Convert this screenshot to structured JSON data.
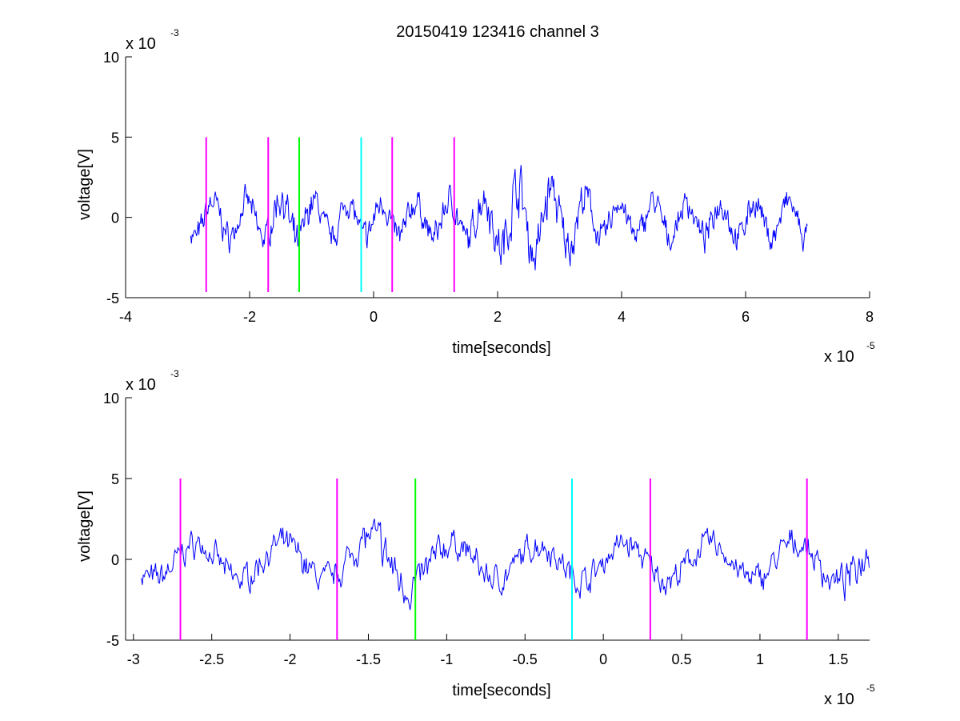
{
  "chart_data": [
    {
      "type": "line",
      "title": "20150419 123416 channel 3",
      "xlabel": "time[seconds]",
      "ylabel": "voltage[V]",
      "xlim": [
        -4,
        8
      ],
      "ylim": [
        -5,
        10
      ],
      "x_scale_label": "x 10",
      "x_scale_exp": "-5",
      "y_scale_label": "x 10",
      "y_scale_exp": "-3",
      "x_ticks": [
        -4,
        -2,
        0,
        2,
        4,
        6,
        8
      ],
      "x_tick_labels": [
        "-4",
        "-2",
        "0",
        "2",
        "4",
        "6",
        "8"
      ],
      "y_ticks": [
        -5,
        0,
        5,
        10
      ],
      "y_tick_labels": [
        "-5",
        "0",
        "5",
        "10"
      ],
      "signal": {
        "x_start": -2.95,
        "x_end": 7.0,
        "color": "#0000ff",
        "seed": 7
      },
      "markers": [
        {
          "x": -2.7,
          "color": "#ff00ff",
          "y_top": 5,
          "y_bottom": -5
        },
        {
          "x": -1.7,
          "color": "#ff00ff",
          "y_top": 5,
          "y_bottom": -5
        },
        {
          "x": -1.2,
          "color": "#00ff00",
          "y_top": 5,
          "y_bottom": -5
        },
        {
          "x": -0.2,
          "color": "#00ffff",
          "y_top": 5,
          "y_bottom": -5
        },
        {
          "x": 0.3,
          "color": "#ff00ff",
          "y_top": 5,
          "y_bottom": -5
        },
        {
          "x": 1.3,
          "color": "#ff00ff",
          "y_top": 5,
          "y_bottom": -5
        }
      ]
    },
    {
      "type": "line",
      "title": "",
      "xlabel": "time[seconds]",
      "ylabel": "voltage[V]",
      "xlim": [
        -3.05,
        1.7
      ],
      "ylim": [
        -5,
        10
      ],
      "x_scale_label": "x 10",
      "x_scale_exp": "-5",
      "y_scale_label": "x 10",
      "y_scale_exp": "-3",
      "x_ticks": [
        -3,
        -2.5,
        -2,
        -1.5,
        -1,
        -0.5,
        0,
        0.5,
        1,
        1.5
      ],
      "x_tick_labels": [
        "-3",
        "-2.5",
        "-2",
        "-1.5",
        "-1",
        "-0.5",
        "0",
        "0.5",
        "1",
        "1.5"
      ],
      "y_ticks": [
        -5,
        0,
        5,
        10
      ],
      "y_tick_labels": [
        "-5",
        "0",
        "5",
        "10"
      ],
      "signal": {
        "x_start": -2.95,
        "x_end": 1.7,
        "color": "#0000ff",
        "seed": 7
      },
      "markers": [
        {
          "x": -2.7,
          "color": "#ff00ff",
          "y_top": 5,
          "y_bottom": -5
        },
        {
          "x": -1.7,
          "color": "#ff00ff",
          "y_top": 5,
          "y_bottom": -5
        },
        {
          "x": -1.2,
          "color": "#00ff00",
          "y_top": 5,
          "y_bottom": -5
        },
        {
          "x": -0.2,
          "color": "#00ffff",
          "y_top": 5,
          "y_bottom": -5
        },
        {
          "x": 0.3,
          "color": "#ff00ff",
          "y_top": 5,
          "y_bottom": -5
        },
        {
          "x": 1.3,
          "color": "#ff00ff",
          "y_top": 5,
          "y_bottom": -5
        }
      ]
    }
  ]
}
